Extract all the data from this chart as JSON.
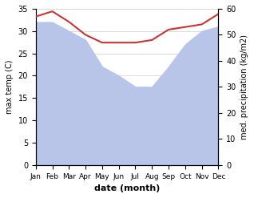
{
  "months": [
    "Jan",
    "Feb",
    "Mar",
    "Apr",
    "May",
    "Jun",
    "Jul",
    "Aug",
    "Sep",
    "Oct",
    "Nov",
    "Dec"
  ],
  "x": [
    0,
    1,
    2,
    3,
    4,
    5,
    6,
    7,
    8,
    9,
    10,
    11
  ],
  "temp": [
    32,
    32,
    30,
    28,
    22,
    20,
    17.5,
    17.5,
    22,
    27,
    30,
    31
  ],
  "precip": [
    57,
    59,
    55,
    50,
    47,
    47,
    47,
    48,
    52,
    53,
    54,
    58
  ],
  "temp_fill_color": "#b8c4e8",
  "precip_line_color": "#cc3333",
  "xlabel": "date (month)",
  "ylabel_left": "max temp (C)",
  "ylabel_right": "med. precipitation (kg/m2)",
  "ylim_left": [
    0,
    35
  ],
  "ylim_right": [
    0,
    60
  ],
  "yticks_left": [
    0,
    5,
    10,
    15,
    20,
    25,
    30,
    35
  ],
  "yticks_right": [
    0,
    10,
    20,
    30,
    40,
    50,
    60
  ]
}
